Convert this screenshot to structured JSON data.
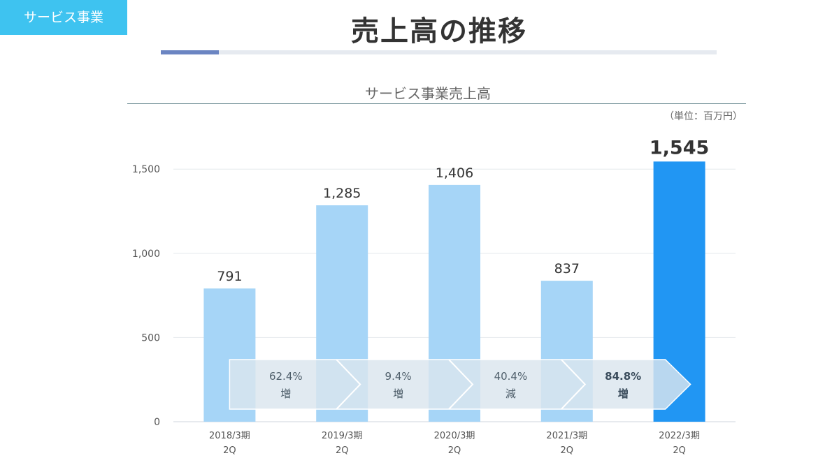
{
  "section_badge": "サービス事業",
  "page_title": "売上高の推移",
  "chart_title": "サービス事業売上高",
  "unit": "（単位：百万円）",
  "colors": {
    "accent": "#3ec3f0",
    "bar_light": "#a6d5f7",
    "bar_highlight": "#2196f3",
    "arrow_fill": "#dbe5ee",
    "title_rule_accent": "#6b85c2"
  },
  "chart_data": {
    "type": "bar",
    "categories": [
      [
        "2018/3期",
        "2Q"
      ],
      [
        "2019/3期",
        "2Q"
      ],
      [
        "2020/3期",
        "2Q"
      ],
      [
        "2021/3期",
        "2Q"
      ],
      [
        "2022/3期",
        "2Q"
      ]
    ],
    "values": [
      791,
      1285,
      1406,
      837,
      1545
    ],
    "value_labels": [
      "791",
      "1,285",
      "1,406",
      "837",
      "1,545"
    ],
    "highlight_index": 4,
    "ylim": [
      0,
      1750
    ],
    "yticks": [
      0,
      500,
      1000,
      1500
    ],
    "ytick_labels": [
      "0",
      "500",
      "1,000",
      "1,500"
    ],
    "grid": true,
    "growth_annotations": [
      {
        "rate": "62.4%",
        "label": "増",
        "bold": false
      },
      {
        "rate": "9.4%",
        "label": "増",
        "bold": false
      },
      {
        "rate": "40.4%",
        "label": "減",
        "bold": false
      },
      {
        "rate": "84.8%",
        "label": "増",
        "bold": true
      }
    ]
  }
}
